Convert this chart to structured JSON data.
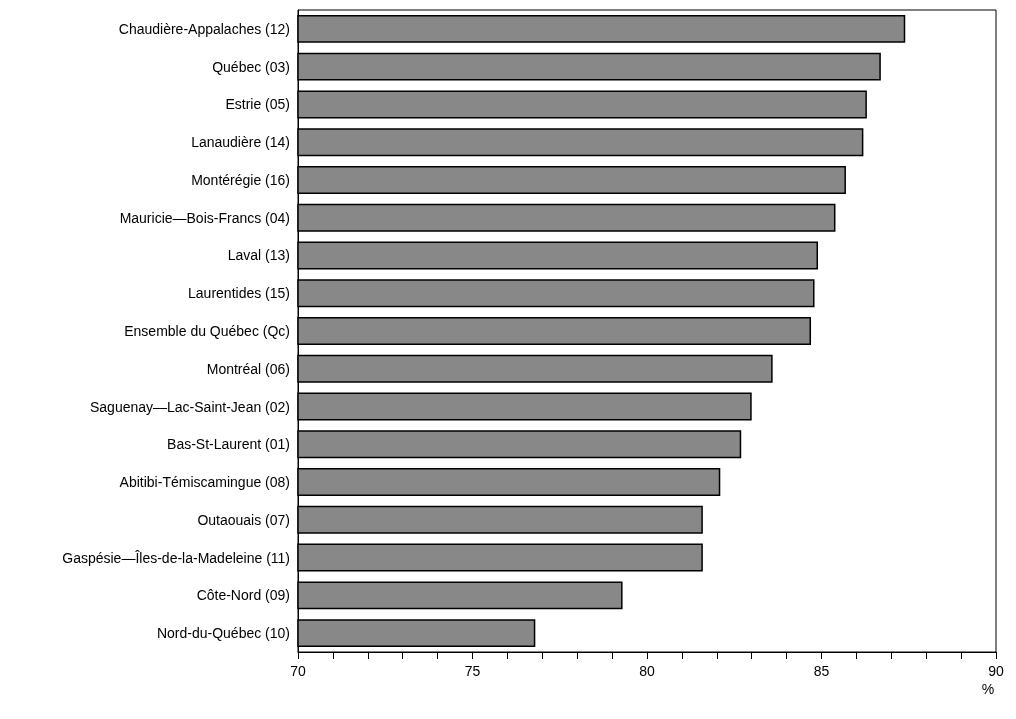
{
  "chart_data": {
    "type": "bar",
    "orientation": "horizontal",
    "xlabel": "%",
    "categories": [
      "Chaudière-Appalaches (12)",
      "Québec (03)",
      "Estrie (05)",
      "Lanaudière (14)",
      "Montérégie (16)",
      "Mauricie—Bois-Francs (04)",
      "Laval (13)",
      "Laurentides (15)",
      "Ensemble du Québec (Qc)",
      "Montréal (06)",
      "Saguenay—Lac-Saint-Jean (02)",
      "Bas-St-Laurent (01)",
      "Abitibi-Témiscamingue (08)",
      "Outaouais (07)",
      "Gaspésie—Îles-de-la-Madeleine (11)",
      "Côte-Nord (09)",
      "Nord-du-Québec (10)"
    ],
    "values": [
      87.4,
      86.7,
      86.3,
      86.2,
      85.7,
      85.4,
      84.9,
      84.8,
      84.7,
      83.6,
      83.0,
      82.7,
      82.1,
      81.6,
      81.6,
      79.3,
      76.8
    ],
    "color": "#888888",
    "xlim": [
      70,
      90
    ],
    "xticks": [
      70,
      {
        "value": 71,
        "label": null
      },
      {
        "value": 72,
        "label": null
      },
      {
        "value": 73,
        "label": null
      },
      {
        "value": 74,
        "label": null
      },
      75,
      {
        "value": 76,
        "label": null
      },
      {
        "value": 77,
        "label": null
      },
      {
        "value": 78,
        "label": null
      },
      {
        "value": 79,
        "label": null
      },
      80,
      {
        "value": 81,
        "label": null
      },
      {
        "value": 82,
        "label": null
      },
      {
        "value": 83,
        "label": null
      },
      {
        "value": 84,
        "label": null
      },
      85,
      {
        "value": 86,
        "label": null
      },
      {
        "value": 87,
        "label": null
      },
      {
        "value": 88,
        "label": null
      },
      {
        "value": 89,
        "label": null
      },
      90
    ],
    "grid": false
  }
}
